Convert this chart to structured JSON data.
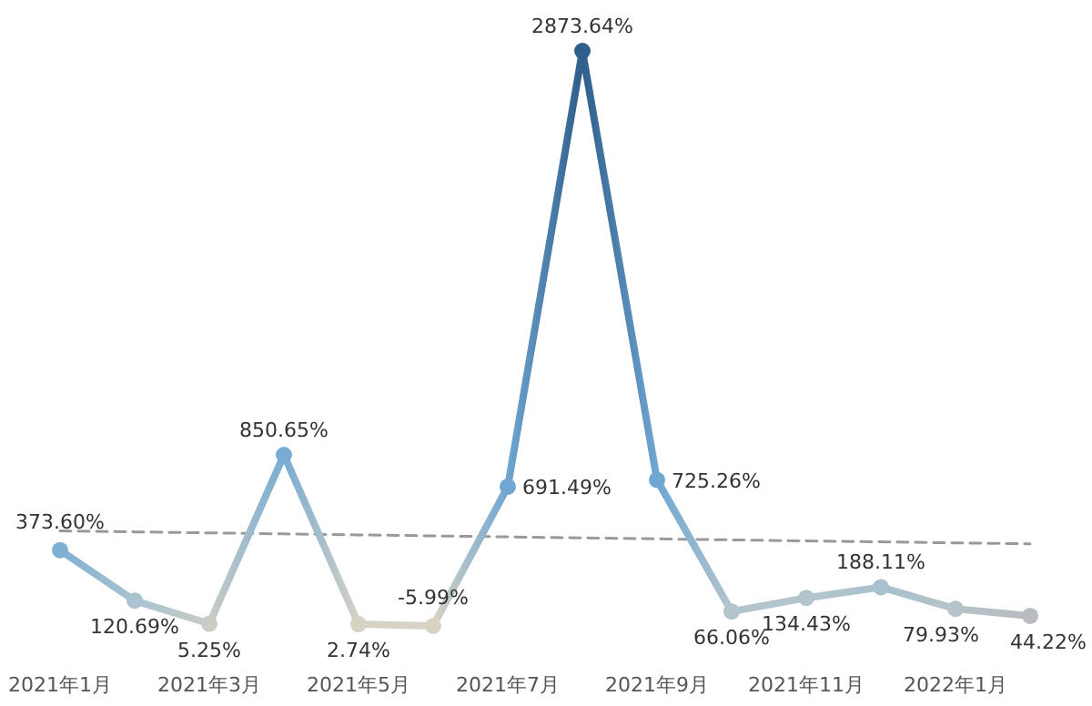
{
  "chart_data": {
    "type": "line",
    "categories": [
      "2021年1月",
      null,
      "2021年3月",
      null,
      "2021年5月",
      null,
      "2021年7月",
      null,
      "2021年9月",
      null,
      "2021年11月",
      null,
      "2022年1月",
      null
    ],
    "series": [
      {
        "color": "#6fa3cc",
        "colors": [
          "#7fb0d4",
          "#a9c3d0",
          "#c9cdc6",
          "#78acd3",
          "#d6d2c4",
          "#d8d3c3",
          "#6fa6d2",
          "#2f5d8c",
          "#6fa7d3",
          "#b3c5cc",
          "#b3c5cc",
          "#a8c1ce",
          "#b6c3c8",
          "#b8bcc0"
        ],
        "values": [
          373.6,
          120.69,
          5.25,
          850.65,
          2.74,
          -5.99,
          691.49,
          2873.64,
          725.26,
          66.06,
          134.43,
          188.11,
          79.93,
          44.22
        ],
        "value_labels": [
          "373.60%",
          "120.69%",
          "5.25%",
          "850.65%",
          "2.74%",
          "-5.99%",
          "691.49%",
          "2873.64%",
          "725.26%",
          "66.06%",
          "134.43%",
          "188.11%",
          "79.93%",
          "44.22%"
        ],
        "marker": "circle"
      },
      {
        "type": "line",
        "color": "#999999",
        "line_style": "dashed",
        "marker": "none",
        "values": [
          470,
          465,
          460,
          455,
          450,
          445,
          440,
          435,
          430,
          425,
          420,
          415,
          410,
          405
        ]
      }
    ],
    "tick_labels": "x"
  }
}
